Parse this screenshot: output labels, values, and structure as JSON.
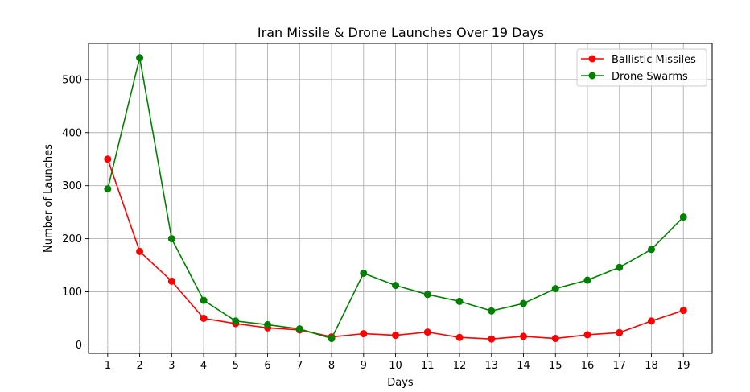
{
  "chart_data": {
    "type": "line",
    "title": "Iran Missile & Drone Launches Over 19 Days",
    "xlabel": "Days",
    "ylabel": "Number of Launches",
    "x": [
      1,
      2,
      3,
      4,
      5,
      6,
      7,
      8,
      9,
      10,
      11,
      12,
      13,
      14,
      15,
      16,
      17,
      18,
      19
    ],
    "xlim": [
      0.4,
      19.9
    ],
    "ylim": [
      -16,
      568
    ],
    "y_ticks": [
      0,
      100,
      200,
      300,
      400,
      500
    ],
    "grid": true,
    "legend": "top-right",
    "series": [
      {
        "name": "Ballistic Missiles",
        "color": "#ff0000",
        "marker": "circle",
        "values": [
          350,
          176,
          120,
          50,
          40,
          32,
          28,
          15,
          21,
          18,
          24,
          14,
          11,
          16,
          12,
          19,
          23,
          45,
          65
        ]
      },
      {
        "name": "Drone Swarms",
        "color": "#008000",
        "marker": "circle",
        "values": [
          294,
          541,
          200,
          84,
          45,
          38,
          30,
          12,
          135,
          112,
          95,
          82,
          64,
          78,
          106,
          122,
          146,
          180,
          241
        ]
      }
    ]
  }
}
